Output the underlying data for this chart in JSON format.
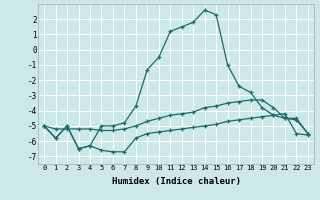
{
  "xlabel": "Humidex (Indice chaleur)",
  "bg_color": "#cce8e8",
  "grid_color": "#ffffff",
  "line_color": "#1a6b6b",
  "xlim": [
    -0.5,
    23.5
  ],
  "ylim": [
    -7.5,
    3.0
  ],
  "yticks": [
    2,
    1,
    0,
    -1,
    -2,
    -3,
    -4,
    -5,
    -6,
    -7
  ],
  "xticks": [
    0,
    1,
    2,
    3,
    4,
    5,
    6,
    7,
    8,
    9,
    10,
    11,
    12,
    13,
    14,
    15,
    16,
    17,
    18,
    19,
    20,
    21,
    22,
    23
  ],
  "line_peak_x": [
    0,
    1,
    2,
    3,
    4,
    5,
    6,
    7,
    8,
    9,
    10,
    11,
    12,
    13,
    14,
    15,
    16,
    17,
    18,
    19,
    20,
    21,
    22,
    23
  ],
  "line_peak_y": [
    -5.0,
    -5.8,
    -5.0,
    -6.5,
    -6.3,
    -5.0,
    -5.0,
    -4.8,
    -3.7,
    -1.3,
    -0.5,
    1.2,
    1.5,
    1.8,
    2.6,
    2.3,
    -1.0,
    -2.4,
    -2.8,
    -3.8,
    -4.3,
    -4.5,
    -4.5,
    -5.5
  ],
  "line_mid_x": [
    0,
    1,
    2,
    3,
    4,
    5,
    6,
    7,
    8,
    9,
    10,
    11,
    12,
    13,
    14,
    15,
    16,
    17,
    18,
    19,
    20,
    21,
    22,
    23
  ],
  "line_mid_y": [
    -5.0,
    -5.2,
    -5.2,
    -5.2,
    -5.2,
    -5.3,
    -5.3,
    -5.2,
    -5.0,
    -4.7,
    -4.5,
    -4.3,
    -4.2,
    -4.1,
    -3.8,
    -3.7,
    -3.5,
    -3.4,
    -3.3,
    -3.3,
    -3.8,
    -4.5,
    -4.6,
    -5.5
  ],
  "line_low_x": [
    0,
    1,
    2,
    3,
    4,
    5,
    6,
    7,
    8,
    9,
    10,
    11,
    12,
    13,
    14,
    15,
    16,
    17,
    18,
    19,
    20,
    21,
    22,
    23
  ],
  "line_low_y": [
    -5.0,
    -5.8,
    -5.0,
    -6.5,
    -6.3,
    -6.6,
    -6.7,
    -6.7,
    -5.8,
    -5.5,
    -5.4,
    -5.3,
    -5.2,
    -5.1,
    -5.0,
    -4.9,
    -4.7,
    -4.6,
    -4.5,
    -4.4,
    -4.3,
    -4.2,
    -5.5,
    -5.6
  ]
}
